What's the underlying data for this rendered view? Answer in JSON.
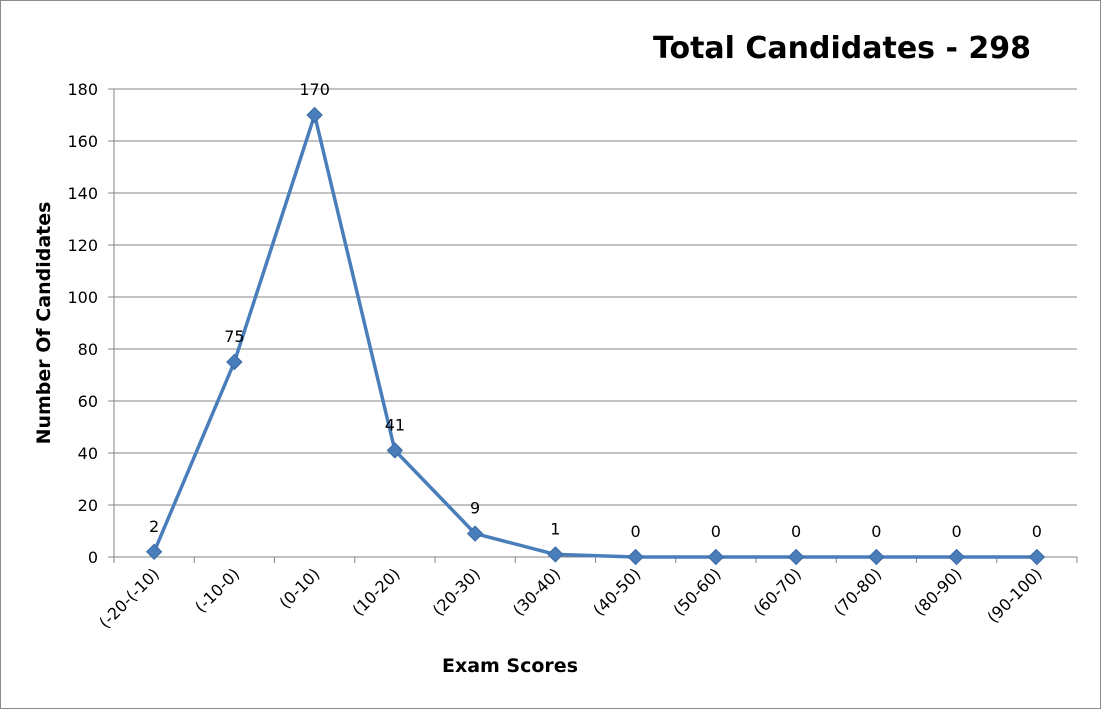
{
  "chart_data": {
    "type": "line",
    "title": "Total Candidates - 298",
    "xlabel": "Exam Scores",
    "ylabel": "Number Of Candidates",
    "categories": [
      "(-20-(-10)",
      "(-10-0)",
      "(0-10)",
      "(10-20)",
      "(20-30)",
      "(30-40)",
      "(40-50)",
      "(50-60)",
      "(60-70)",
      "(70-80)",
      "(80-90)",
      "(90-100)"
    ],
    "series": [
      {
        "values": [
          2,
          75,
          170,
          41,
          9,
          1,
          0,
          0,
          0,
          0,
          0,
          0
        ],
        "color": "#4a7ebb"
      }
    ],
    "ylim": [
      0,
      180
    ],
    "yticks": [
      0,
      20,
      40,
      60,
      80,
      100,
      120,
      140,
      160,
      180
    ],
    "grid": true,
    "legend": "none",
    "data_labels": true,
    "gridline_color": "#868686"
  }
}
